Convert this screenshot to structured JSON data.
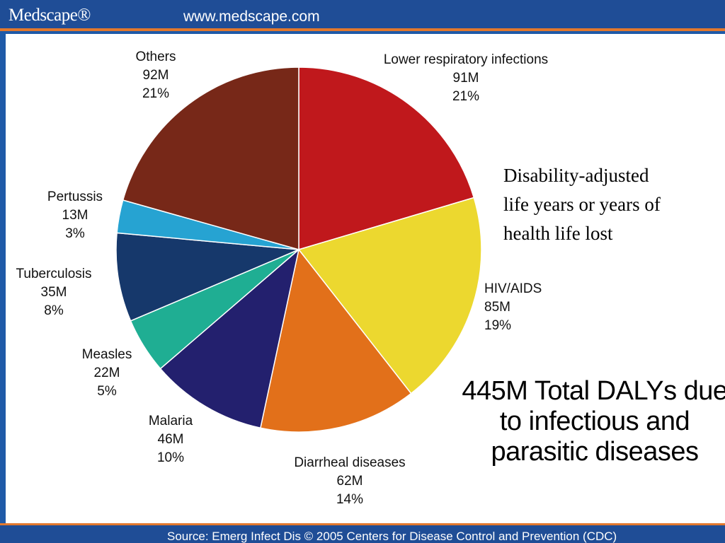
{
  "header": {
    "brand": "Medscape®",
    "url": "www.medscape.com"
  },
  "footer": {
    "source": "Source: Emerg Infect Dis © 2005 Centers for Disease Control and Prevention (CDC)"
  },
  "note": {
    "line1": "Disability-adjusted",
    "line2": "life years or years of",
    "line3": "health life lost"
  },
  "total": {
    "line1": "445M Total DALYs due",
    "line2": "to infectious and",
    "line3": "parasitic diseases"
  },
  "chart_data": {
    "type": "pie",
    "title": "445M Total DALYs due to infectious and parasitic diseases",
    "start_angle_deg": 0,
    "direction": "clockwise",
    "slices": [
      {
        "name": "Lower respiratory infections",
        "value": 91,
        "value_label": "91M",
        "percent_label": "21%",
        "color": "#c0181c"
      },
      {
        "name": "HIV/AIDS",
        "value": 85,
        "value_label": "85M",
        "percent_label": "19%",
        "color": "#ecd82f"
      },
      {
        "name": "Diarrheal diseases",
        "value": 62,
        "value_label": "62M",
        "percent_label": "14%",
        "color": "#e2701a"
      },
      {
        "name": "Malaria",
        "value": 46,
        "value_label": "46M",
        "percent_label": "10%",
        "color": "#23206e"
      },
      {
        "name": "Measles",
        "value": 22,
        "value_label": "22M",
        "percent_label": "5%",
        "color": "#1fae93"
      },
      {
        "name": "Tuberculosis",
        "value": 35,
        "value_label": "35M",
        "percent_label": "8%",
        "color": "#16386b"
      },
      {
        "name": "Pertussis",
        "value": 13,
        "value_label": "13M",
        "percent_label": "3%",
        "color": "#26a3d2"
      },
      {
        "name": "Others",
        "value": 92,
        "value_label": "92M",
        "percent_label": "21%",
        "color": "#772818"
      }
    ]
  }
}
